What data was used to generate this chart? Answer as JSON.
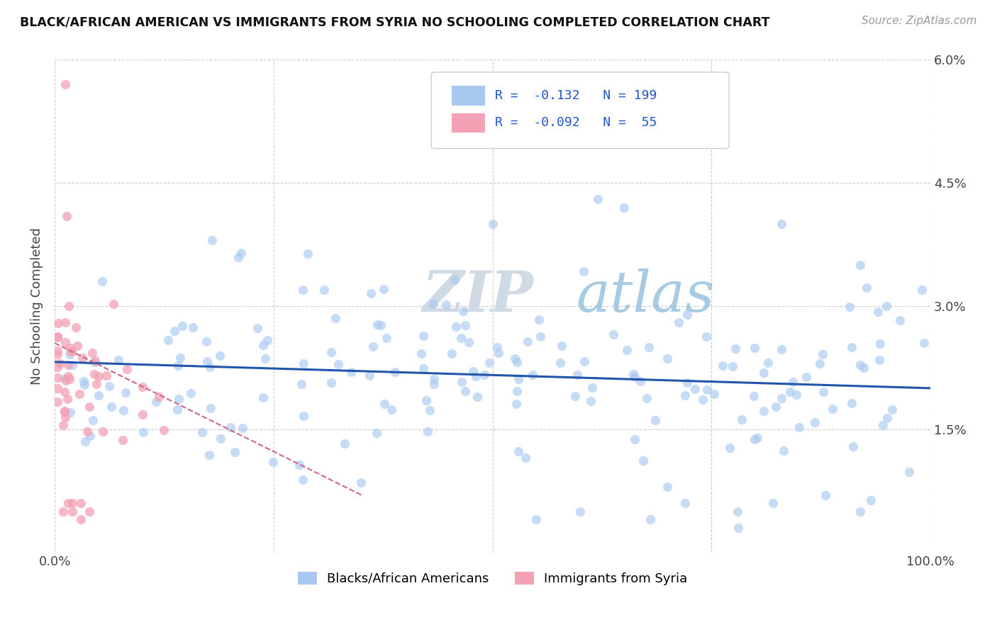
{
  "title": "BLACK/AFRICAN AMERICAN VS IMMIGRANTS FROM SYRIA NO SCHOOLING COMPLETED CORRELATION CHART",
  "source_text": "Source: ZipAtlas.com",
  "ylabel": "No Schooling Completed",
  "xlim": [
    0,
    1.0
  ],
  "ylim": [
    0,
    0.06
  ],
  "ytick_vals": [
    0.0,
    0.015,
    0.03,
    0.045,
    0.06
  ],
  "ytick_labels": [
    "",
    "1.5%",
    "3.0%",
    "4.5%",
    "6.0%"
  ],
  "blue_R": -0.132,
  "blue_N": 199,
  "pink_R": -0.092,
  "pink_N": 55,
  "blue_color": "#A8C8F0",
  "pink_color": "#F4A0B5",
  "blue_line_color": "#2255AA",
  "pink_line_color": "#CC6688",
  "watermark_ZIP": "ZIP",
  "watermark_atlas": "atlas",
  "legend_label_blue": "Blacks/African Americans",
  "legend_label_pink": "Immigrants from Syria",
  "blue_line_x0": 0.0,
  "blue_line_y0": 0.0232,
  "blue_line_x1": 1.0,
  "blue_line_y1": 0.02,
  "pink_line_x0": 0.0,
  "pink_line_y0": 0.025,
  "pink_line_x1": 0.25,
  "pink_line_y1": 0.01
}
